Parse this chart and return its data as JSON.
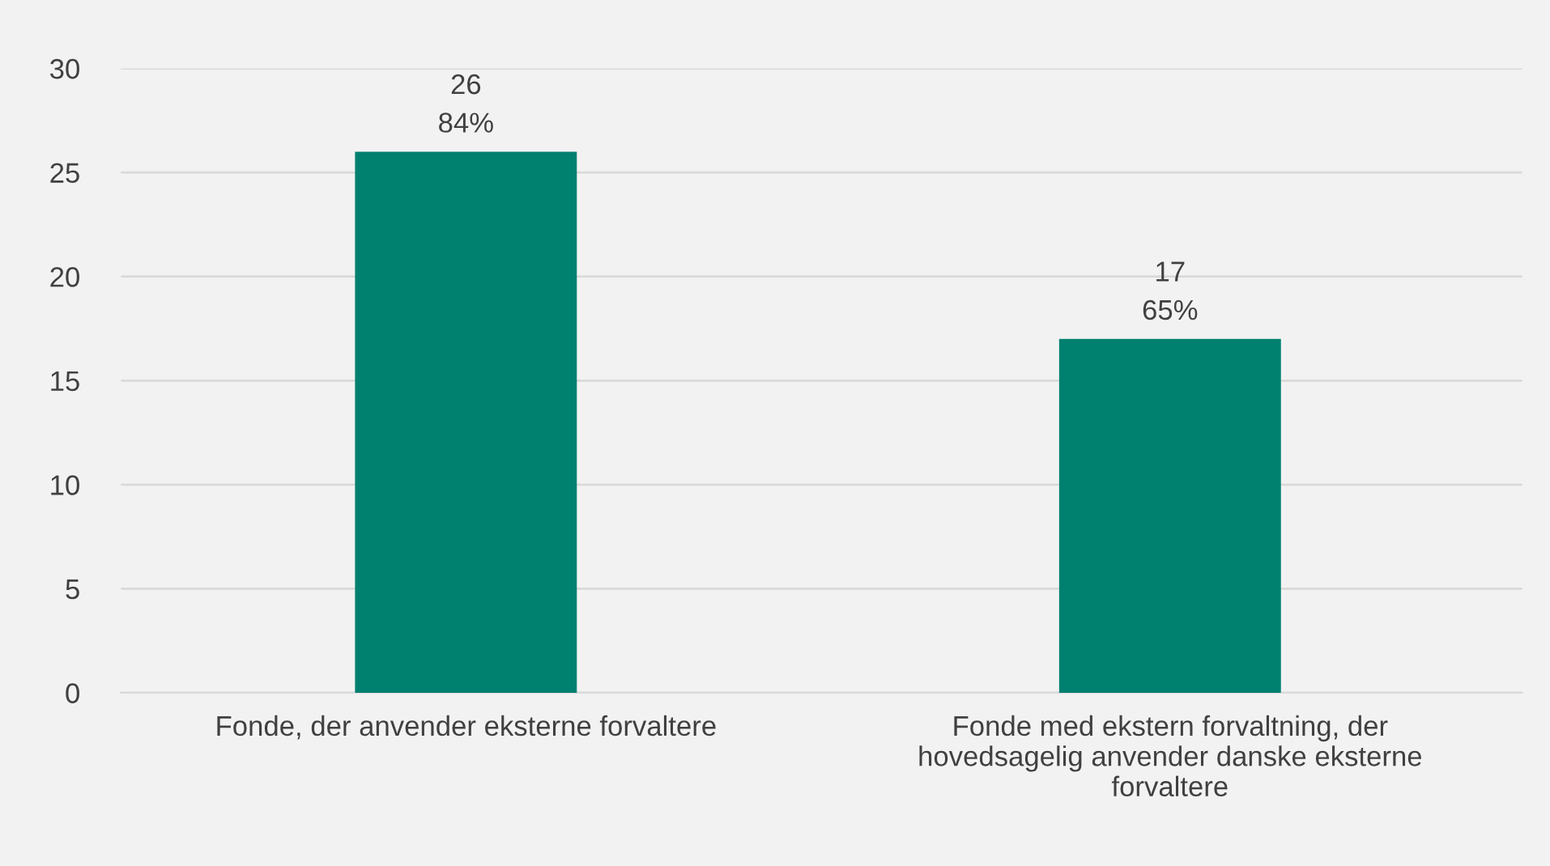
{
  "chart_data": {
    "type": "bar",
    "categories": [
      "Fonde, der anvender eksterne forvaltere",
      "Fonde med ekstern forvaltning, der\nhovedsagelig anvender danske eksterne\nforvaltere"
    ],
    "values": [
      26,
      17
    ],
    "color": "#00806f",
    "value_labels": [
      "26\n84%",
      "17\n65%"
    ],
    "ylim": [
      0,
      30
    ],
    "yticks": [
      0,
      5,
      10,
      15,
      20,
      25,
      30
    ],
    "grid": "y",
    "legend": false
  }
}
